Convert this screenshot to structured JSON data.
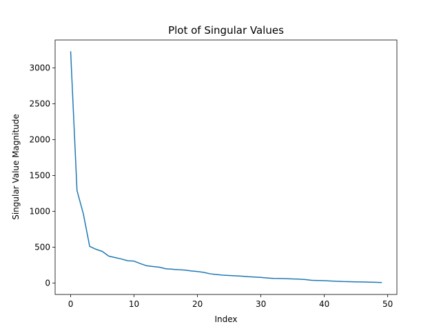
{
  "chart_data": {
    "type": "line",
    "title": "Plot of Singular Values",
    "xlabel": "Index",
    "ylabel": "Singular Value Magnitude",
    "xlim": [
      -2.45,
      51.45
    ],
    "ylim": [
      -160,
      3390
    ],
    "xticks": [
      0,
      10,
      20,
      30,
      40,
      50
    ],
    "yticks": [
      0,
      500,
      1000,
      1500,
      2000,
      2500,
      3000
    ],
    "grid": false,
    "series": [
      {
        "color": "#1f77b4",
        "x": [
          0,
          1,
          2,
          3,
          4,
          5,
          6,
          7,
          8,
          9,
          10,
          11,
          12,
          13,
          14,
          15,
          16,
          17,
          18,
          19,
          20,
          21,
          22,
          23,
          24,
          25,
          26,
          27,
          28,
          29,
          30,
          31,
          32,
          33,
          34,
          35,
          36,
          37,
          38,
          39,
          40,
          41,
          42,
          43,
          44,
          45,
          46,
          47,
          48,
          49
        ],
        "values": [
          3225,
          1290,
          965,
          510,
          470,
          440,
          375,
          355,
          335,
          310,
          305,
          270,
          240,
          230,
          220,
          198,
          192,
          185,
          180,
          168,
          160,
          148,
          128,
          118,
          110,
          105,
          100,
          95,
          88,
          83,
          78,
          70,
          64,
          62,
          60,
          57,
          54,
          48,
          37,
          35,
          32,
          28,
          24,
          20,
          18,
          16,
          14,
          12,
          9,
          6
        ]
      }
    ]
  }
}
